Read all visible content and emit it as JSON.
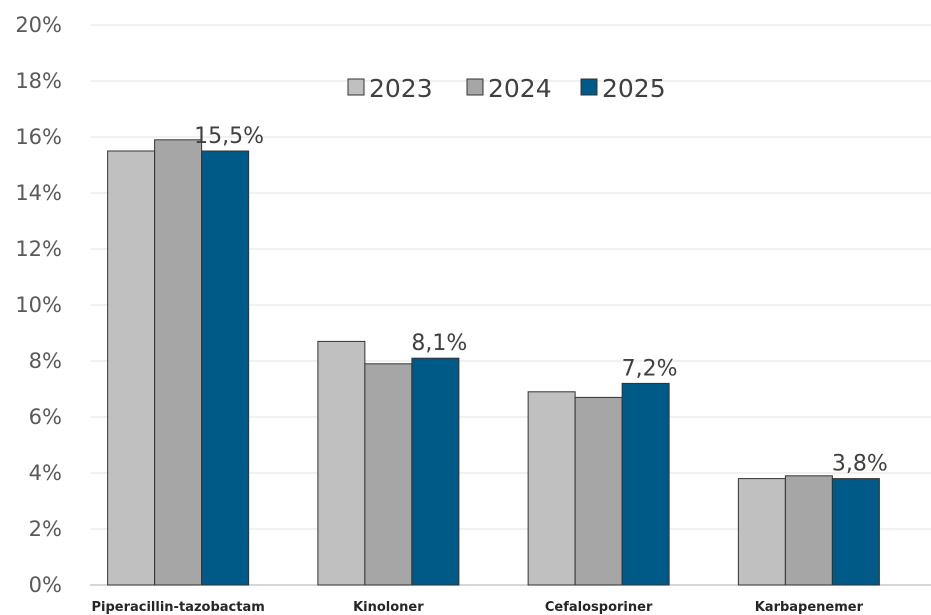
{
  "chart_data": {
    "type": "bar",
    "categories": [
      "Piperacillin-tazobactam",
      "Kinoloner",
      "Cefalosporiner",
      "Karbapenemer"
    ],
    "series": [
      {
        "name": "2023",
        "values": [
          15.5,
          8.7,
          6.9,
          3.8
        ],
        "color": "#c0c0c0"
      },
      {
        "name": "2024",
        "values": [
          15.9,
          7.9,
          6.7,
          3.9
        ],
        "color": "#a6a6a6"
      },
      {
        "name": "2025",
        "values": [
          15.5,
          8.1,
          7.2,
          3.8
        ],
        "color": "#005a87"
      }
    ],
    "data_labels": [
      {
        "series": "2025",
        "category": "Piperacillin-tazobactam",
        "text": "15,5%"
      },
      {
        "series": "2025",
        "category": "Kinoloner",
        "text": "8,1%"
      },
      {
        "series": "2025",
        "category": "Cefalosporiner",
        "text": "7,2%"
      },
      {
        "series": "2025",
        "category": "Karbapenemer",
        "text": "3,8%"
      }
    ],
    "yticks": [
      "0%",
      "2%",
      "4%",
      "6%",
      "8%",
      "10%",
      "12%",
      "14%",
      "16%",
      "18%",
      "20%"
    ],
    "ylim": [
      0,
      20
    ],
    "grid": true,
    "legend_position": "top-center",
    "title": "",
    "xlabel": "",
    "ylabel": ""
  }
}
